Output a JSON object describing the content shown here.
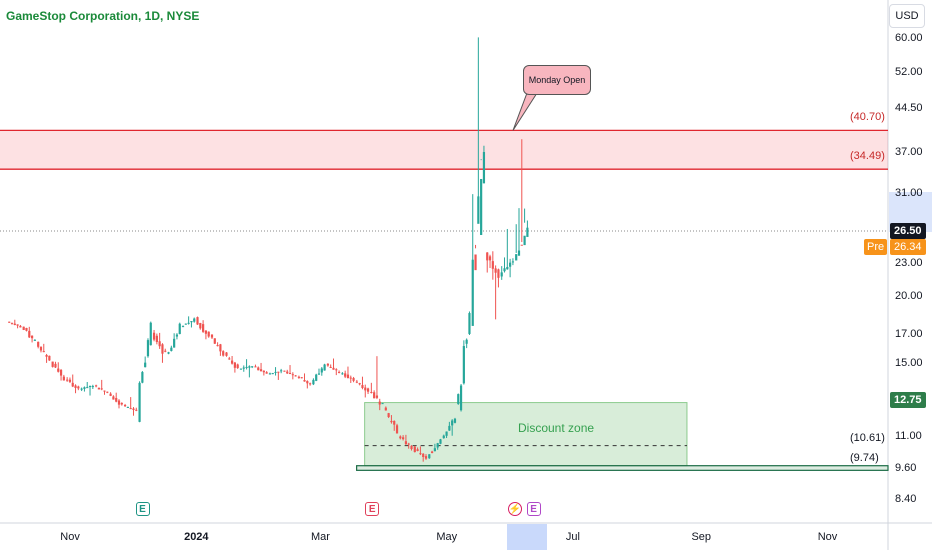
{
  "header": {
    "title": "GameStop Corporation, 1D, NYSE",
    "currency": "USD"
  },
  "chart_data": {
    "type": "candlestick",
    "title": "GameStop Corporation, 1D, NYSE",
    "y_scale": "log",
    "y_ticks": [
      "60.00",
      "52.00",
      "44.50",
      "37.00",
      "31.00",
      "23.00",
      "20.00",
      "17.00",
      "15.00",
      "11.00",
      "9.60",
      "8.40"
    ],
    "x_ticks": [
      {
        "label": "Nov",
        "bold": false
      },
      {
        "label": "2024",
        "bold": true
      },
      {
        "label": "Mar",
        "bold": false
      },
      {
        "label": "May",
        "bold": false
      },
      {
        "label": "Jul",
        "bold": false
      },
      {
        "label": "Sep",
        "bold": false
      },
      {
        "label": "Nov",
        "bold": false
      }
    ],
    "last_price": "26.50",
    "premarket": {
      "label": "Pre",
      "price": "26.34"
    },
    "level_badge": "12.75",
    "levels": [
      {
        "label": "(40.70)",
        "value": 40.7
      },
      {
        "label": "(34.49)",
        "value": 34.49
      },
      {
        "label": "(10.61)",
        "value": 10.61
      },
      {
        "label": "(9.74)",
        "value": 9.74
      }
    ],
    "zones": [
      {
        "name": "resistance",
        "low": 34.49,
        "high": 40.7,
        "color": "#f23645"
      },
      {
        "name": "discount",
        "low": 9.74,
        "high": 12.75,
        "color": "#4caf50"
      }
    ],
    "annotations": {
      "discount_label": "Discount zone",
      "callout": "Monday Open"
    },
    "events": [
      {
        "type": "earnings",
        "label": "E",
        "color": "#1e9484"
      },
      {
        "type": "earnings",
        "label": "E",
        "color": "#e0405a"
      },
      {
        "type": "split",
        "label": "⚡",
        "color": "#d81b60"
      },
      {
        "type": "earnings",
        "label": "E",
        "color": "#b048c8"
      }
    ],
    "colors": {
      "up": "#26a69a",
      "down": "#ef5350",
      "grid": "#f0f3fa",
      "resistance_line": "#e0262f",
      "support_line": "#1a6b45"
    },
    "series": [
      {
        "x": "2023-10-02",
        "o": 18.0,
        "h": 18.3,
        "l": 17.4,
        "c": 17.6
      },
      {
        "x": "2023-10-09",
        "o": 17.6,
        "h": 17.9,
        "l": 16.2,
        "c": 16.5
      },
      {
        "x": "2023-10-16",
        "o": 16.5,
        "h": 17.0,
        "l": 14.8,
        "c": 15.2
      },
      {
        "x": "2023-10-23",
        "o": 15.2,
        "h": 15.6,
        "l": 13.8,
        "c": 14.1
      },
      {
        "x": "2023-10-30",
        "o": 14.1,
        "h": 14.6,
        "l": 13.2,
        "c": 13.5
      },
      {
        "x": "2023-11-06",
        "o": 13.5,
        "h": 14.0,
        "l": 13.0,
        "c": 13.7
      },
      {
        "x": "2023-11-13",
        "o": 13.7,
        "h": 14.2,
        "l": 13.1,
        "c": 13.3
      },
      {
        "x": "2023-11-20",
        "o": 13.3,
        "h": 13.6,
        "l": 12.4,
        "c": 12.6
      },
      {
        "x": "2023-11-27",
        "o": 12.6,
        "h": 13.2,
        "l": 12.0,
        "c": 12.3
      },
      {
        "x": "2023-12-04",
        "o": 12.3,
        "h": 17.6,
        "l": 12.2,
        "c": 17.2
      },
      {
        "x": "2023-12-11",
        "o": 17.2,
        "h": 17.8,
        "l": 15.0,
        "c": 15.6
      },
      {
        "x": "2023-12-18",
        "o": 15.6,
        "h": 18.0,
        "l": 15.4,
        "c": 17.6
      },
      {
        "x": "2023-12-25",
        "o": 17.6,
        "h": 18.7,
        "l": 17.2,
        "c": 18.2
      },
      {
        "x": "2024-01-01",
        "o": 18.2,
        "h": 18.5,
        "l": 16.5,
        "c": 16.9
      },
      {
        "x": "2024-01-08",
        "o": 16.9,
        "h": 17.1,
        "l": 15.4,
        "c": 15.7
      },
      {
        "x": "2024-01-15",
        "o": 15.7,
        "h": 16.0,
        "l": 14.4,
        "c": 14.7
      },
      {
        "x": "2024-01-22",
        "o": 14.7,
        "h": 15.4,
        "l": 14.1,
        "c": 14.9
      },
      {
        "x": "2024-01-29",
        "o": 14.9,
        "h": 15.3,
        "l": 14.2,
        "c": 14.4
      },
      {
        "x": "2024-02-05",
        "o": 14.4,
        "h": 14.9,
        "l": 13.9,
        "c": 14.6
      },
      {
        "x": "2024-02-12",
        "o": 14.6,
        "h": 15.1,
        "l": 14.0,
        "c": 14.3
      },
      {
        "x": "2024-02-19",
        "o": 14.3,
        "h": 14.7,
        "l": 13.5,
        "c": 13.8
      },
      {
        "x": "2024-02-26",
        "o": 13.8,
        "h": 15.3,
        "l": 13.6,
        "c": 15.0
      },
      {
        "x": "2024-03-04",
        "o": 15.0,
        "h": 15.6,
        "l": 14.2,
        "c": 14.5
      },
      {
        "x": "2024-03-11",
        "o": 14.5,
        "h": 15.0,
        "l": 13.7,
        "c": 14.0
      },
      {
        "x": "2024-03-18",
        "o": 14.0,
        "h": 14.5,
        "l": 13.0,
        "c": 13.4
      },
      {
        "x": "2024-03-25",
        "o": 13.4,
        "h": 15.8,
        "l": 12.3,
        "c": 12.6
      },
      {
        "x": "2024-04-01",
        "o": 12.6,
        "h": 12.9,
        "l": 10.8,
        "c": 11.1
      },
      {
        "x": "2024-04-08",
        "o": 11.1,
        "h": 11.4,
        "l": 10.3,
        "c": 10.5
      },
      {
        "x": "2024-04-15",
        "o": 10.5,
        "h": 10.8,
        "l": 9.8,
        "c": 10.0
      },
      {
        "x": "2024-04-22",
        "o": 10.0,
        "h": 11.2,
        "l": 9.9,
        "c": 11.0
      },
      {
        "x": "2024-04-29",
        "o": 11.0,
        "h": 12.1,
        "l": 10.5,
        "c": 11.9
      },
      {
        "x": "2024-05-06",
        "o": 11.9,
        "h": 18.6,
        "l": 11.6,
        "c": 18.2
      },
      {
        "x": "2024-05-13",
        "o": 18.2,
        "h": 64.8,
        "l": 28.0,
        "c": 35.0
      },
      {
        "x": "2024-05-20",
        "o": 24.0,
        "h": 25.0,
        "l": 18.0,
        "c": 22.0
      },
      {
        "x": "2024-05-27",
        "o": 22.0,
        "h": 27.5,
        "l": 21.0,
        "c": 23.5
      },
      {
        "x": "2024-06-03",
        "o": 23.5,
        "h": 40.7,
        "l": 26.0,
        "c": 26.5
      }
    ]
  }
}
